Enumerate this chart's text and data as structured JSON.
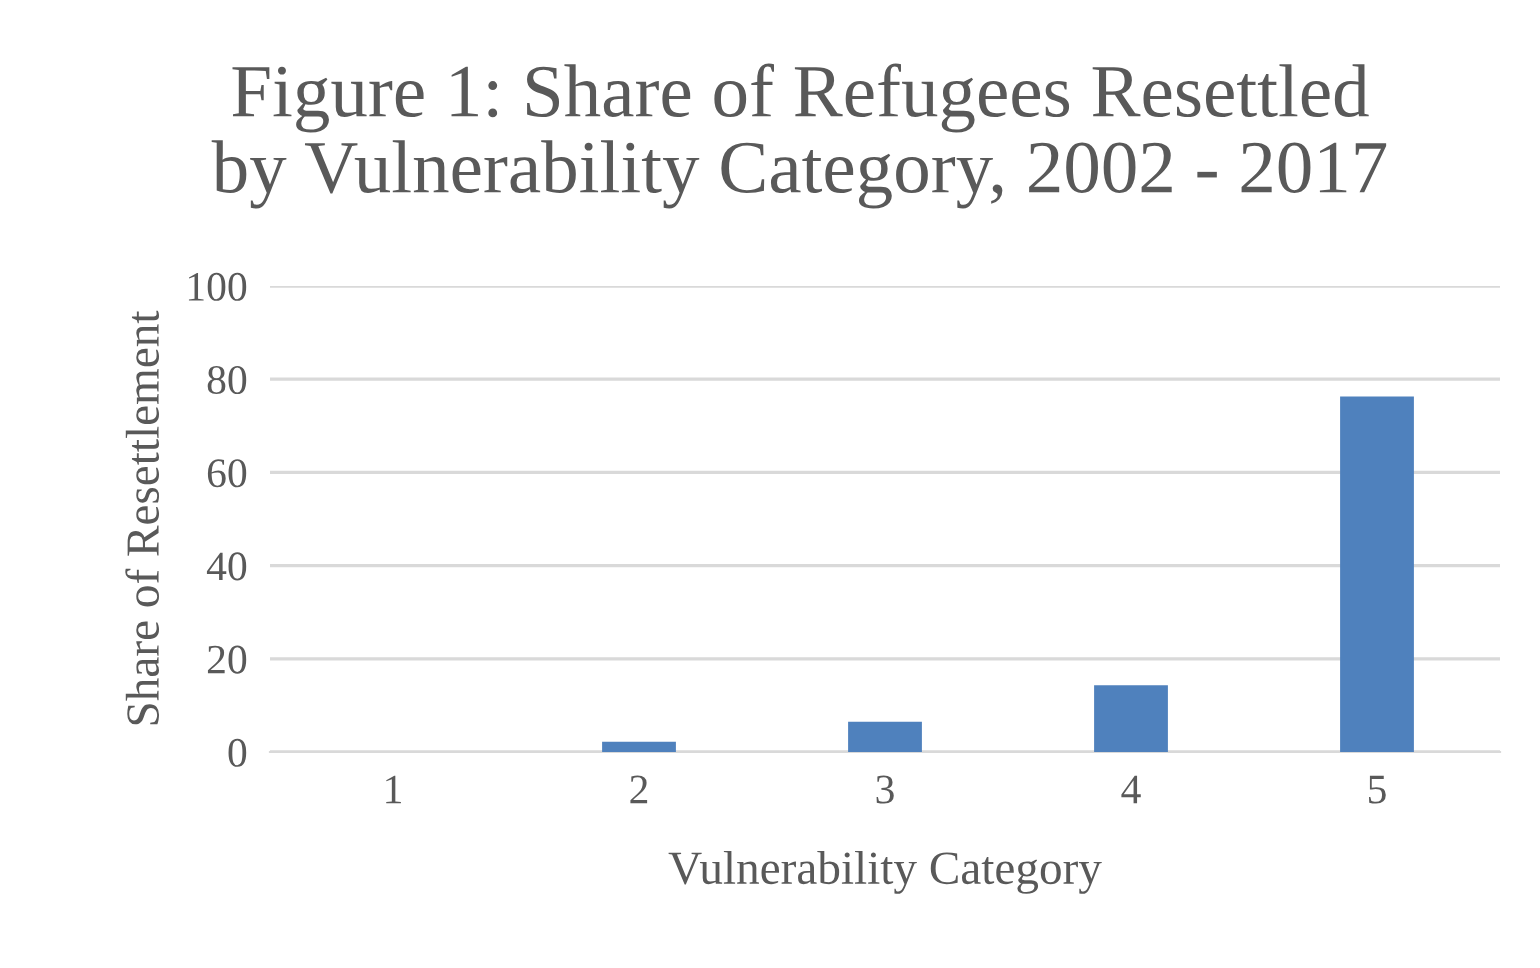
{
  "chart_data": {
    "type": "bar",
    "title": "Figure 1: Share of Refugees Resettled\nby Vulnerability Category, 2002 - 2017",
    "xlabel": "Vulnerability Category",
    "ylabel": "Share of Resettlement",
    "categories": [
      "1",
      "2",
      "3",
      "4",
      "5"
    ],
    "values": [
      0,
      2.2,
      6.5,
      14.3,
      76.3
    ],
    "color": "#4f81bd",
    "ylim": [
      0,
      100
    ],
    "yticks": [
      0,
      20,
      40,
      60,
      80,
      100
    ],
    "grid": "y"
  }
}
